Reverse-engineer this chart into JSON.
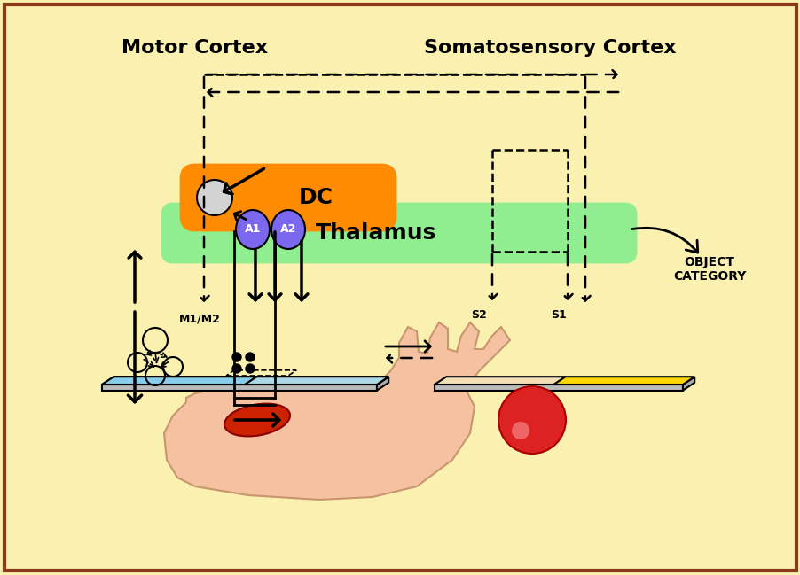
{
  "bg_color": "#FAF0B0",
  "border_color": "#8B3A1A",
  "title_motor": "Motor Cortex",
  "title_somato": "Somatosensory Cortex",
  "label_m1m2": "M1/M2",
  "label_s2": "S2",
  "label_s1": "S1",
  "label_thalamus": "Thalamus",
  "label_dc": "DC",
  "label_a1": "A1",
  "label_a2": "A2",
  "label_object": "OBJECT\nCATEGORY",
  "color_motor_plate_left": "#87CEEB",
  "color_motor_plate_right": "#ADD8E6",
  "color_somato_s2": "#F5DEB3",
  "color_somato_s1": "#FFD700",
  "color_thalamus": "#90EE90",
  "color_dc": "#FF8C00",
  "color_a1a2": "#7B68EE",
  "color_neuron": "#D3D3D3"
}
